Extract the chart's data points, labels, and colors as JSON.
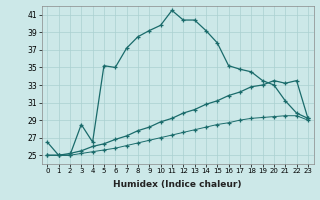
{
  "xlabel": "Humidex (Indice chaleur)",
  "ylabel": "",
  "bg_color": "#cce8e8",
  "grid_color": "#aad0d0",
  "line_color": "#1a6b6b",
  "xlim": [
    -0.5,
    23.5
  ],
  "ylim": [
    24,
    42
  ],
  "yticks": [
    25,
    27,
    29,
    31,
    33,
    35,
    37,
    39,
    41
  ],
  "xticks": [
    0,
    1,
    2,
    3,
    4,
    5,
    6,
    7,
    8,
    9,
    10,
    11,
    12,
    13,
    14,
    15,
    16,
    17,
    18,
    19,
    20,
    21,
    22,
    23
  ],
  "line1_x": [
    0,
    1,
    2,
    3,
    4,
    5,
    6,
    7,
    8,
    9,
    10,
    11,
    12,
    13,
    14,
    15,
    16,
    17,
    18,
    19,
    20,
    21,
    22,
    23
  ],
  "line1_y": [
    26.5,
    25.0,
    25.0,
    28.5,
    26.5,
    35.2,
    35.0,
    37.2,
    38.5,
    39.2,
    39.8,
    41.5,
    40.4,
    40.4,
    39.2,
    37.8,
    35.2,
    34.8,
    34.5,
    33.5,
    33.0,
    31.2,
    29.8,
    29.2
  ],
  "line2_x": [
    0,
    1,
    2,
    3,
    4,
    5,
    6,
    7,
    8,
    9,
    10,
    11,
    12,
    13,
    14,
    15,
    16,
    17,
    18,
    19,
    20,
    21,
    22,
    23
  ],
  "line2_y": [
    25.0,
    25.0,
    25.2,
    25.5,
    26.0,
    26.3,
    26.8,
    27.2,
    27.8,
    28.2,
    28.8,
    29.2,
    29.8,
    30.2,
    30.8,
    31.2,
    31.8,
    32.2,
    32.8,
    33.0,
    33.5,
    33.2,
    33.5,
    29.2
  ],
  "line3_x": [
    0,
    1,
    2,
    3,
    4,
    5,
    6,
    7,
    8,
    9,
    10,
    11,
    12,
    13,
    14,
    15,
    16,
    17,
    18,
    19,
    20,
    21,
    22,
    23
  ],
  "line3_y": [
    25.0,
    25.0,
    25.0,
    25.2,
    25.4,
    25.6,
    25.8,
    26.1,
    26.4,
    26.7,
    27.0,
    27.3,
    27.6,
    27.9,
    28.2,
    28.5,
    28.7,
    29.0,
    29.2,
    29.3,
    29.4,
    29.5,
    29.5,
    29.0
  ]
}
